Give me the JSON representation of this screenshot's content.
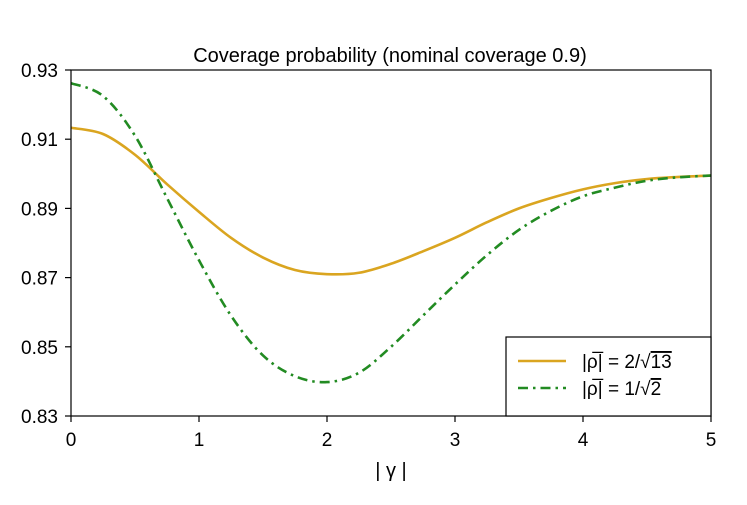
{
  "chart_data": {
    "type": "line",
    "title": "Coverage probability (nominal coverage 0.9)",
    "xlabel": "| γ |",
    "ylabel": "",
    "xlim": [
      0,
      5
    ],
    "ylim": [
      0.83,
      0.93
    ],
    "xticks": [
      0,
      1,
      2,
      3,
      4,
      5
    ],
    "xtick_labels": [
      "0",
      "1",
      "2",
      "3",
      "4",
      "5"
    ],
    "yticks": [
      0.83,
      0.85,
      0.87,
      0.89,
      0.91,
      0.93
    ],
    "ytick_labels": [
      "0.83",
      "0.85",
      "0.87",
      "0.89",
      "0.91",
      "0.93"
    ],
    "legend_position": "bottom-right",
    "x": [
      0,
      0.25,
      0.5,
      0.75,
      1.0,
      1.25,
      1.5,
      1.75,
      2.0,
      2.25,
      2.5,
      2.75,
      3.0,
      3.25,
      3.5,
      3.75,
      4.0,
      4.25,
      4.5,
      4.75,
      5.0
    ],
    "series": [
      {
        "name": "|ρ̅| = 2/√13",
        "legend_prefix": "|ρ̅| = 2/√",
        "legend_radicand": "13",
        "color": "#DAA520",
        "style": "solid",
        "values": [
          0.9133,
          0.9115,
          0.9055,
          0.897,
          0.889,
          0.8815,
          0.8758,
          0.8722,
          0.871,
          0.8714,
          0.874,
          0.8776,
          0.8815,
          0.886,
          0.89,
          0.893,
          0.8955,
          0.8973,
          0.8985,
          0.8991,
          0.8995
        ]
      },
      {
        "name": "|ρ̅| = 1/√2",
        "legend_prefix": "|ρ̅| = 1/√",
        "legend_radicand": "2",
        "color": "#228B22",
        "style": "dashdot",
        "values": [
          0.9262,
          0.9225,
          0.911,
          0.893,
          0.875,
          0.859,
          0.8475,
          0.8415,
          0.8398,
          0.8425,
          0.85,
          0.859,
          0.868,
          0.8765,
          0.8838,
          0.8893,
          0.8935,
          0.896,
          0.898,
          0.899,
          0.8995
        ]
      }
    ]
  }
}
